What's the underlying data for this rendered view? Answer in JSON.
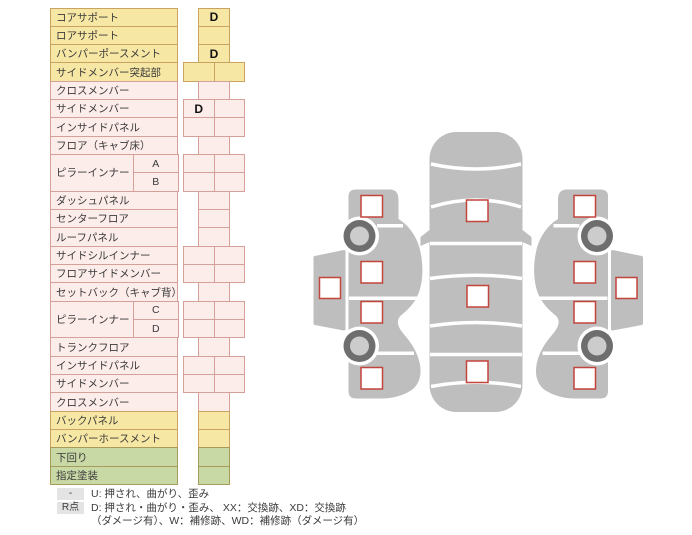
{
  "palette": {
    "yellow_fill": "#F7E7A4",
    "yellow_border": "#C9A35F",
    "pink_fill": "#FCECEA",
    "pink_border": "#D5A09A",
    "green_fill": "#C9D9A6",
    "green_border": "#A89B59",
    "box_border": "#C2453C",
    "car_gray": "#BEBEBE",
    "wheel_outer": "#6E6E6E",
    "wheel_inner": "#CCCCCC",
    "legend_key_fill": "#E4E4E4"
  },
  "table": {
    "rows": [
      {
        "label": "コアサポート",
        "color": "yellow",
        "type": "single",
        "marks": [
          "D"
        ]
      },
      {
        "label": "ロアサポート",
        "color": "yellow",
        "type": "single",
        "marks": [
          ""
        ]
      },
      {
        "label": "バンパーポースメント",
        "color": "yellow",
        "type": "single",
        "marks": [
          "D"
        ]
      },
      {
        "label": "サイドメンバー突起部",
        "color": "yellow",
        "type": "double",
        "marks": [
          "",
          ""
        ]
      },
      {
        "label": "クロスメンバー",
        "color": "pink",
        "type": "single",
        "marks": [
          ""
        ]
      },
      {
        "label": "サイドメンバー",
        "color": "pink",
        "type": "double",
        "marks": [
          "D",
          ""
        ]
      },
      {
        "label": "インサイドパネル",
        "color": "pink",
        "type": "double",
        "marks": [
          "",
          ""
        ]
      },
      {
        "label": "フロア（キャブ床）",
        "color": "pink",
        "type": "single",
        "marks": [
          ""
        ]
      },
      {
        "label": "ピラーインナー",
        "color": "pink",
        "type": "double",
        "marks": [
          "",
          ""
        ],
        "sub": "A",
        "groupStart": true
      },
      {
        "label": "",
        "color": "pink",
        "type": "double",
        "marks": [
          "",
          ""
        ],
        "sub": "B",
        "skipLabel": true
      },
      {
        "label": "ダッシュパネル",
        "color": "pink",
        "type": "single",
        "marks": [
          ""
        ]
      },
      {
        "label": "センターフロア",
        "color": "pink",
        "type": "single",
        "marks": [
          ""
        ]
      },
      {
        "label": "ルーフパネル",
        "color": "pink",
        "type": "single",
        "marks": [
          ""
        ]
      },
      {
        "label": "サイドシルインナー",
        "color": "pink",
        "type": "double",
        "marks": [
          "",
          ""
        ]
      },
      {
        "label": "フロアサイドメンバー",
        "color": "pink",
        "type": "double",
        "marks": [
          "",
          ""
        ]
      },
      {
        "label": "セットバック（キャブ背）",
        "color": "pink",
        "type": "single",
        "marks": [
          ""
        ]
      },
      {
        "label": "ピラーインナー",
        "color": "pink",
        "type": "double",
        "marks": [
          "",
          ""
        ],
        "sub": "C",
        "groupStart": true
      },
      {
        "label": "",
        "color": "pink",
        "type": "double",
        "marks": [
          "",
          ""
        ],
        "sub": "D",
        "skipLabel": true
      },
      {
        "label": "トランクフロア",
        "color": "pink",
        "type": "single",
        "marks": [
          ""
        ]
      },
      {
        "label": "インサイドパネル",
        "color": "pink",
        "type": "double",
        "marks": [
          "",
          ""
        ]
      },
      {
        "label": "サイドメンバー",
        "color": "pink",
        "type": "double",
        "marks": [
          "",
          ""
        ]
      },
      {
        "label": "クロスメンバー",
        "color": "pink",
        "type": "single",
        "marks": [
          ""
        ]
      },
      {
        "label": "バックパネル",
        "color": "yellow",
        "type": "single",
        "marks": [
          ""
        ]
      },
      {
        "label": "バンパーホースメント",
        "color": "yellow",
        "type": "single",
        "marks": [
          ""
        ]
      },
      {
        "label": "下回り",
        "color": "green",
        "type": "single",
        "marks": [
          ""
        ]
      },
      {
        "label": "指定塗装",
        "color": "green",
        "type": "single",
        "marks": [
          ""
        ]
      }
    ]
  },
  "legend": {
    "key1": "-",
    "text1": "U: 押され、曲がり、歪み",
    "key2": "R点",
    "text2": "D: 押され・曲がり・歪み、 XX：交換跡、XD：交換跡",
    "text3": "（ダメージ有）、W：補修跡、WD：補修跡（ダメージ有）"
  }
}
